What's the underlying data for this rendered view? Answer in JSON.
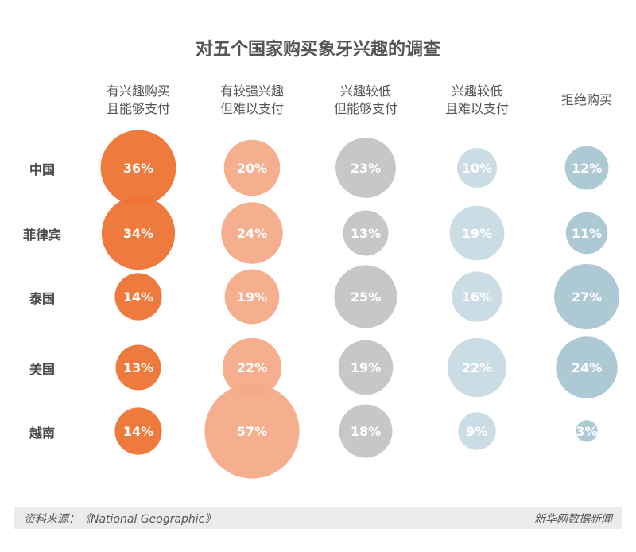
{
  "chart_data": {
    "type": "bubble-matrix",
    "title": "对五个国家购买象牙兴趣的调查",
    "categories": [
      "有兴趣购买且能够支付",
      "有较强兴趣但难以支付",
      "兴趣较低但能够支付",
      "兴趣较低且难以支付",
      "拒绝购买"
    ],
    "column_labels": [
      [
        "有兴趣购买",
        "且能够支付"
      ],
      [
        "有较强兴趣",
        "但难以支付"
      ],
      [
        "兴趣较低",
        "但能够支付"
      ],
      [
        "兴趣较低",
        "且难以支付"
      ],
      [
        "拒绝购买"
      ]
    ],
    "countries": [
      "中国",
      "菲律宾",
      "泰国",
      "美国",
      "越南"
    ],
    "values": [
      [
        36,
        20,
        23,
        10,
        12
      ],
      [
        34,
        24,
        13,
        19,
        11
      ],
      [
        14,
        19,
        25,
        16,
        27
      ],
      [
        13,
        22,
        19,
        22,
        24
      ],
      [
        14,
        57,
        18,
        9,
        3
      ]
    ],
    "unit": "%",
    "colors": [
      "#ee7334",
      "#f4aa88",
      "#c4c4c4",
      "#c8dbe3",
      "#a8c6d2"
    ]
  },
  "footer": {
    "source": "资料来源：《National Geographic》",
    "credit": "新华网数据新闻"
  }
}
